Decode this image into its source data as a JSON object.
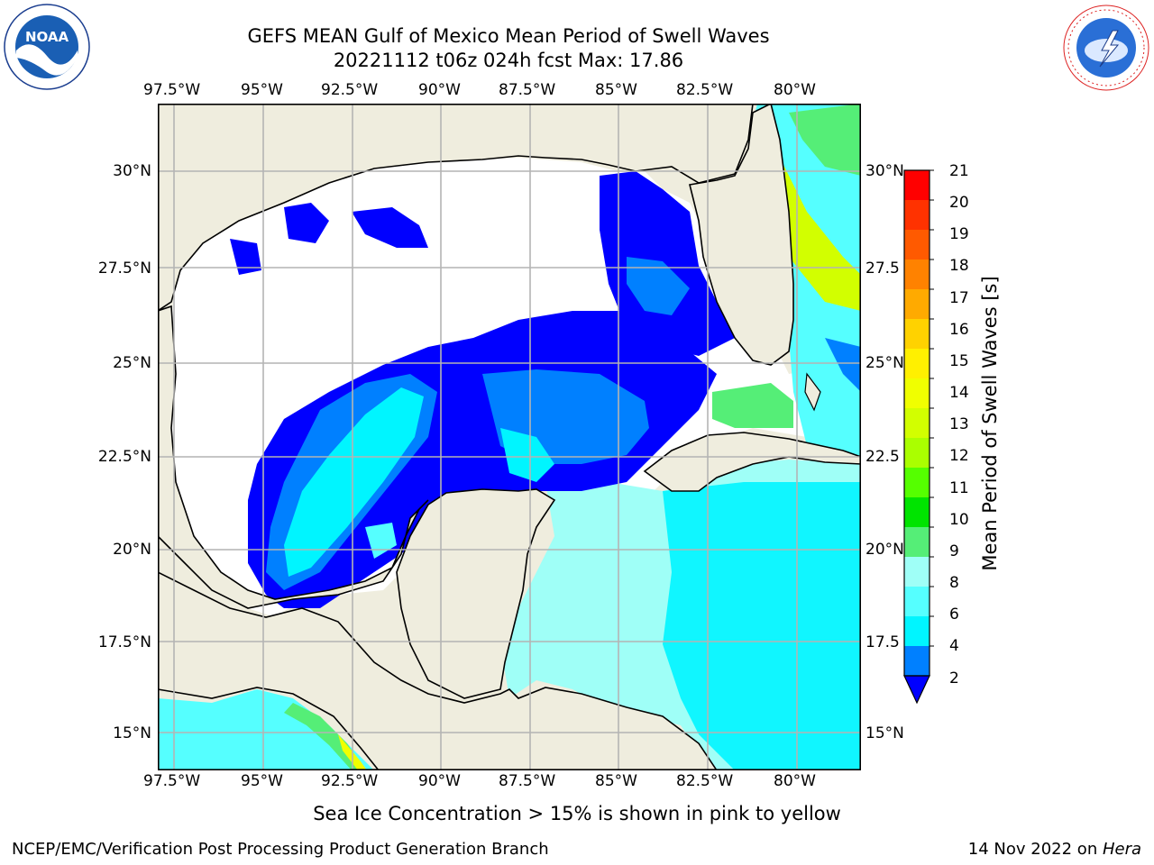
{
  "title": {
    "line1": "GEFS MEAN Gulf of Mexico Mean Period of Swell Waves",
    "line2": "20221112 t06z 024h fcst   Max: 17.86"
  },
  "map": {
    "lon_ticks": [
      "97.5°W",
      "95°W",
      "92.5°W",
      "90°W",
      "87.5°W",
      "85°W",
      "82.5°W",
      "80°W"
    ],
    "lat_ticks": [
      "30°N",
      "27.5°N",
      "25°N",
      "22.5°N",
      "20°N",
      "17.5°N",
      "15°N"
    ],
    "right_lat_ticks": [
      "30°N",
      "27.5",
      "25°N",
      "22.5",
      "20°N",
      "17.5",
      "15°N"
    ],
    "grid": true,
    "land_color": "#efedde",
    "ocean_default": "#ffffff"
  },
  "colorbar": {
    "label": "Mean Period of Swell Waves [s]",
    "ticks": [
      "21",
      "20",
      "19",
      "18",
      "17",
      "16",
      "15",
      "14",
      "13",
      "12",
      "11",
      "10",
      "9",
      "8",
      "6",
      "4",
      "2"
    ],
    "colors": [
      "#ff0000",
      "#ff3200",
      "#ff5a00",
      "#ff8200",
      "#ffaa00",
      "#ffd200",
      "#fff000",
      "#f0ff00",
      "#d2ff00",
      "#aaff00",
      "#55ff00",
      "#00e400",
      "#55ee77",
      "#9ffff7",
      "#55ffff",
      "#00f5ff",
      "#0080ff",
      "#0000ff"
    ],
    "extend": "min"
  },
  "subtitle": "Sea Ice Concentration > 15% is shown in pink to yellow",
  "footer": {
    "left": "NCEP/EMC/Verification Post Processing Product Generation Branch",
    "date": "14 Nov 2022 on ",
    "machine": "Hera"
  },
  "logos": {
    "noaa": "NOAA",
    "nws_arc": "NATIONAL WEATHER SERVICE"
  },
  "icons": [
    "noaa-logo-icon",
    "nws-logo-icon"
  ]
}
